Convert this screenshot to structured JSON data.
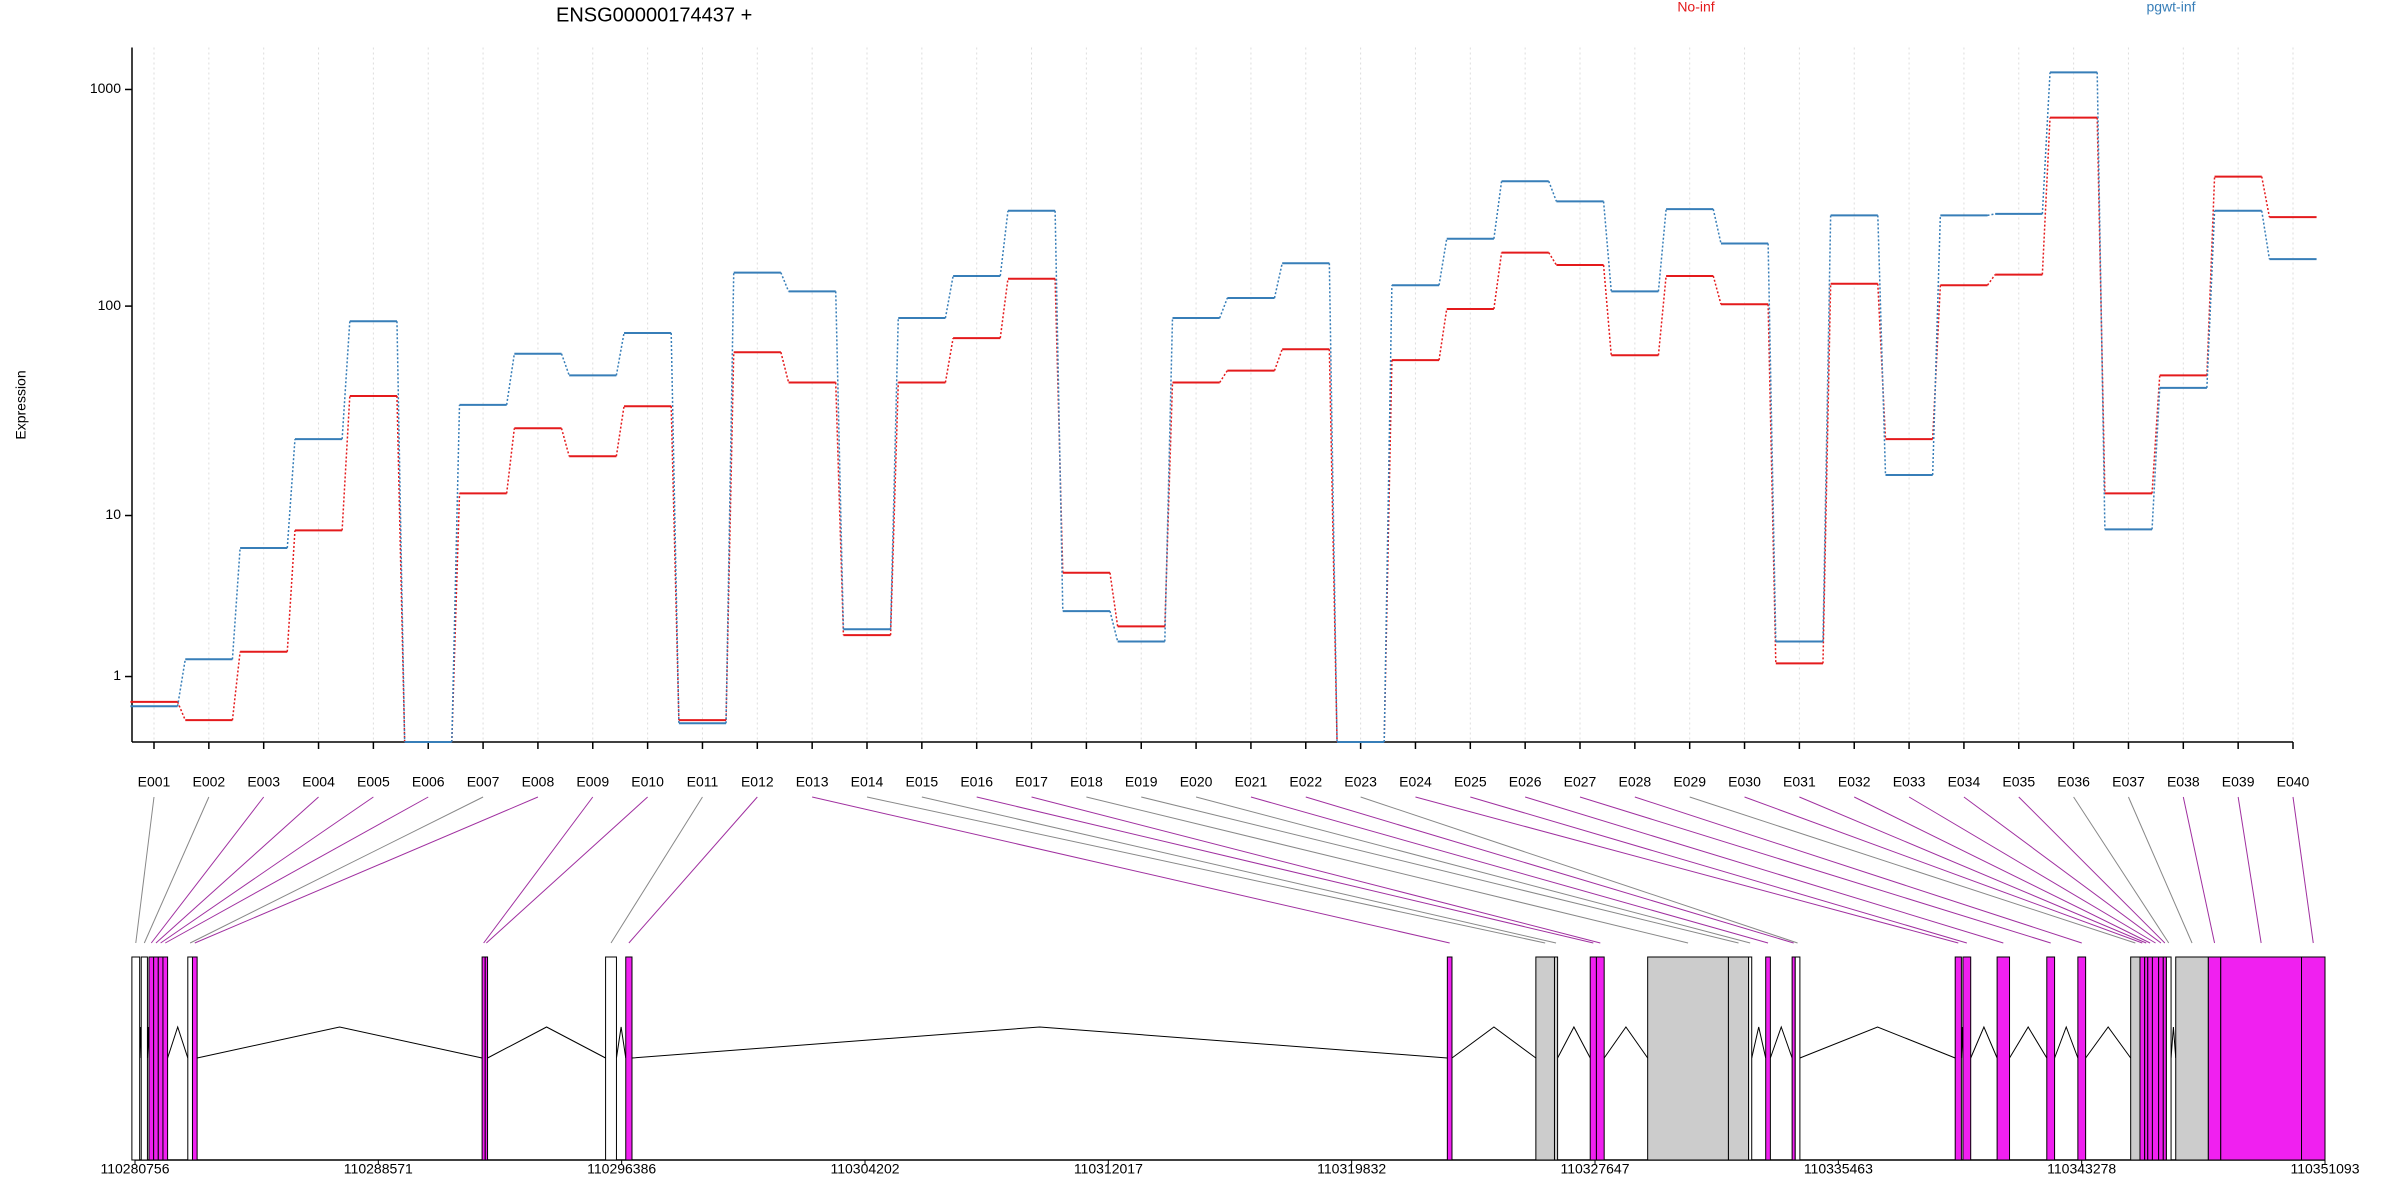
{
  "chart_data": {
    "type": "line",
    "title": "ENSG00000174437 +",
    "ylabel": "Expression",
    "categories": [
      "E001",
      "E002",
      "E003",
      "E004",
      "E005",
      "E006",
      "E007",
      "E008",
      "E009",
      "E010",
      "E011",
      "E012",
      "E013",
      "E014",
      "E015",
      "E016",
      "E017",
      "E018",
      "E019",
      "E020",
      "E021",
      "E022",
      "E023",
      "E024",
      "E025",
      "E026",
      "E027",
      "E028",
      "E029",
      "E030",
      "E031",
      "E032",
      "E033",
      "E034",
      "E035",
      "E036",
      "E037",
      "E038",
      "E039",
      "E040"
    ],
    "series": [
      {
        "name": "No-inf",
        "color": "#e41a1c",
        "values": [
          0.53,
          0.26,
          1.6,
          8.4,
          38,
          0,
          12.9,
          26.7,
          19.6,
          34,
          0.26,
          61,
          44,
          2.1,
          44,
          71,
          134,
          5.0,
          2.4,
          44,
          50,
          63,
          0,
          56,
          97,
          177,
          155,
          59,
          138,
          102,
          1.3,
          127,
          23.7,
          125,
          140,
          742,
          12.9,
          47.5,
          397,
          258
        ]
      },
      {
        "name": "pgwt-inf",
        "color": "#377eb8",
        "values": [
          0.46,
          1.4,
          6.8,
          23.7,
          85,
          0,
          34.5,
          60,
          47.5,
          75,
          0.22,
          143,
          117,
          2.3,
          88,
          138,
          276,
          3.0,
          1.9,
          88,
          109,
          158,
          0,
          125,
          205,
          378,
          305,
          117,
          281,
          195,
          1.9,
          263,
          15.9,
          263,
          267,
          1198,
          8.5,
          41.5,
          276,
          165
        ]
      }
    ],
    "yscale": "log1p",
    "ylim": [
      0,
      1560
    ],
    "yticks": [
      1,
      10,
      100,
      1000
    ],
    "grid": true
  },
  "gene_model": {
    "xlim": [
      110280756,
      110351093
    ],
    "xticks": [
      110280756,
      110288571,
      110296386,
      110304202,
      110312017,
      110319832,
      110327647,
      110335463,
      110343278,
      110351093
    ],
    "exons": [
      {
        "start": 110280656,
        "end": 110280906,
        "color": "#ffffff"
      },
      {
        "start": 110280956,
        "end": 110281155,
        "color": "#ffffff"
      },
      {
        "start": 110281205,
        "end": 110281355,
        "color": "#f020f0"
      },
      {
        "start": 110281355,
        "end": 110281504,
        "color": "#f020f0"
      },
      {
        "start": 110281504,
        "end": 110281654,
        "color": "#f020f0"
      },
      {
        "start": 110281654,
        "end": 110281803,
        "color": "#f020f0"
      },
      {
        "start": 110282452,
        "end": 110282602,
        "color": "#ffffff"
      },
      {
        "start": 110282602,
        "end": 110282751,
        "color": "#f020f0"
      },
      {
        "start": 110291904,
        "end": 110292004,
        "color": "#f020f0"
      },
      {
        "start": 110292004,
        "end": 110292079,
        "color": "#f020f0"
      },
      {
        "start": 110295870,
        "end": 110296219,
        "color": "#ffffff"
      },
      {
        "start": 110296518,
        "end": 110296718,
        "color": "#f020f0"
      },
      {
        "start": 110322905,
        "end": 110323054,
        "color": "#f020f0"
      },
      {
        "start": 110325748,
        "end": 110326346,
        "color": "#cccccc"
      },
      {
        "start": 110326346,
        "end": 110326446,
        "color": "#cccccc"
      },
      {
        "start": 110327494,
        "end": 110327693,
        "color": "#f020f0"
      },
      {
        "start": 110327693,
        "end": 110327942,
        "color": "#f020f0"
      },
      {
        "start": 110329339,
        "end": 110331933,
        "color": "#cccccc"
      },
      {
        "start": 110331933,
        "end": 110332581,
        "color": "#cccccc"
      },
      {
        "start": 110332581,
        "end": 110332681,
        "color": "#ffffff"
      },
      {
        "start": 110333130,
        "end": 110333280,
        "color": "#f020f0"
      },
      {
        "start": 110333978,
        "end": 110334078,
        "color": "#f020f0"
      },
      {
        "start": 110334078,
        "end": 110334228,
        "color": "#ffffff"
      },
      {
        "start": 110339216,
        "end": 110339415,
        "color": "#f020f0"
      },
      {
        "start": 110339465,
        "end": 110339714,
        "color": "#f020f0"
      },
      {
        "start": 110340562,
        "end": 110340961,
        "color": "#f020f0"
      },
      {
        "start": 110342158,
        "end": 110342408,
        "color": "#f020f0"
      },
      {
        "start": 110343156,
        "end": 110343405,
        "color": "#f020f0"
      },
      {
        "start": 110344852,
        "end": 110345151,
        "color": "#cccccc"
      },
      {
        "start": 110345151,
        "end": 110345301,
        "color": "#f020f0"
      },
      {
        "start": 110345301,
        "end": 110345401,
        "color": "#f020f0"
      },
      {
        "start": 110345401,
        "end": 110345550,
        "color": "#f020f0"
      },
      {
        "start": 110345550,
        "end": 110345750,
        "color": "#f020f0"
      },
      {
        "start": 110345750,
        "end": 110345899,
        "color": "#f020f0"
      },
      {
        "start": 110345899,
        "end": 110345999,
        "color": "#f020f0"
      },
      {
        "start": 110345999,
        "end": 110346149,
        "color": "#ffffff"
      },
      {
        "start": 110346299,
        "end": 110347346,
        "color": "#cccccc"
      },
      {
        "start": 110347346,
        "end": 110347745,
        "color": "#f020f0"
      },
      {
        "start": 110347745,
        "end": 110350339,
        "color": "#f020f0"
      },
      {
        "start": 110350339,
        "end": 110351093,
        "color": "#f020f0"
      }
    ]
  }
}
